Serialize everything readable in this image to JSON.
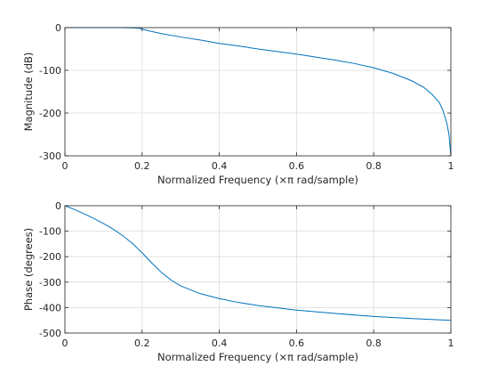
{
  "chart_data": [
    {
      "type": "line",
      "title": "",
      "xlabel": "Normalized Frequency  (×π rad/sample)",
      "ylabel": "Magnitude (dB)",
      "xlim": [
        0,
        1
      ],
      "ylim": [
        -300,
        0
      ],
      "xticks": [
        "0",
        "0.2",
        "0.4",
        "0.6",
        "0.8",
        "1"
      ],
      "yticks": [
        "0",
        "-100",
        "-200",
        "-300"
      ],
      "grid": true,
      "line_color": "#0072bd",
      "series": [
        {
          "x": [
            0,
            0.05,
            0.1,
            0.15,
            0.19,
            0.22,
            0.25,
            0.3,
            0.35,
            0.4,
            0.45,
            0.5,
            0.55,
            0.6,
            0.65,
            0.7,
            0.75,
            0.8,
            0.85,
            0.9,
            0.93,
            0.95,
            0.97,
            0.98,
            0.99,
            0.995,
            1.0
          ],
          "y": [
            0,
            0,
            0,
            0,
            -1,
            -8,
            -14,
            -22,
            -29,
            -37,
            -43,
            -50,
            -56,
            -62,
            -69,
            -76,
            -84,
            -94,
            -107,
            -125,
            -140,
            -155,
            -175,
            -195,
            -225,
            -250,
            -300
          ]
        }
      ]
    },
    {
      "type": "line",
      "title": "",
      "xlabel": "Normalized Frequency  (×π rad/sample)",
      "ylabel": "Phase (degrees)",
      "xlim": [
        0,
        1
      ],
      "ylim": [
        -500,
        0
      ],
      "xticks": [
        "0",
        "0.2",
        "0.4",
        "0.6",
        "0.8",
        "1"
      ],
      "yticks": [
        "0",
        "-100",
        "-200",
        "-300",
        "-400",
        "-500"
      ],
      "grid": true,
      "line_color": "#0072bd",
      "series": [
        {
          "x": [
            0,
            0.025,
            0.05,
            0.075,
            0.1,
            0.125,
            0.15,
            0.175,
            0.2,
            0.225,
            0.25,
            0.275,
            0.3,
            0.35,
            0.4,
            0.45,
            0.5,
            0.6,
            0.7,
            0.8,
            0.9,
            1.0
          ],
          "y": [
            0,
            -15,
            -32,
            -50,
            -70,
            -92,
            -118,
            -148,
            -185,
            -225,
            -262,
            -292,
            -315,
            -345,
            -365,
            -380,
            -392,
            -410,
            -423,
            -435,
            -443,
            -450
          ]
        }
      ]
    }
  ]
}
